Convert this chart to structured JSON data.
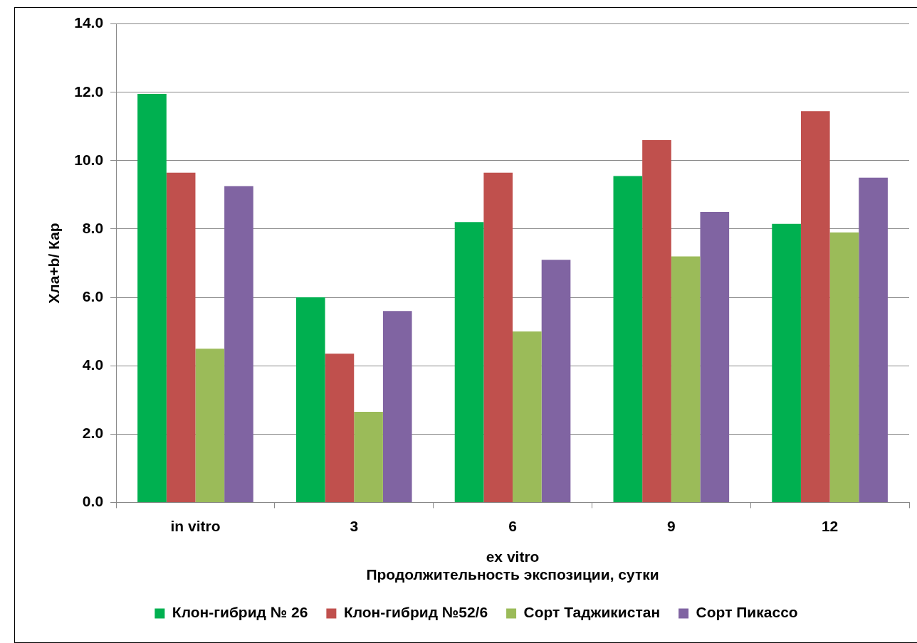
{
  "chart_data": {
    "type": "bar",
    "xlabel": "Продолжительность экспозиции, сутки",
    "ylabel": "Хла+b/ Кар",
    "annotations": [
      "ex vitro"
    ],
    "categories": [
      "in vitro",
      "3",
      "6",
      "9",
      "12"
    ],
    "series": [
      {
        "name": "Клон-гибрид № 26",
        "color": "#00b050",
        "values": [
          11.95,
          6.0,
          8.2,
          9.55,
          8.15
        ]
      },
      {
        "name": "Клон-гибрид №52/6",
        "color": "#c0504d",
        "values": [
          9.65,
          4.35,
          9.65,
          10.6,
          11.45
        ]
      },
      {
        "name": "Сорт Таджикистан",
        "color": "#9bbb59",
        "values": [
          4.5,
          2.65,
          5.0,
          7.2,
          7.9
        ]
      },
      {
        "name": "Сорт Пикассо",
        "color": "#8064a2",
        "values": [
          9.25,
          5.6,
          7.1,
          8.5,
          9.5
        ]
      }
    ],
    "ylim": [
      0,
      14
    ],
    "yticks": [
      {
        "value": 0,
        "label": "0.0"
      },
      {
        "value": 2,
        "label": "2.0"
      },
      {
        "value": 4,
        "label": "4.0"
      },
      {
        "value": 6,
        "label": "6.0"
      },
      {
        "value": 8,
        "label": "8.0"
      },
      {
        "value": 10,
        "label": "10.0"
      },
      {
        "value": 12,
        "label": "12.0"
      },
      {
        "value": 14,
        "label": "14.0"
      }
    ],
    "grid": "y",
    "legend": "bottom"
  }
}
